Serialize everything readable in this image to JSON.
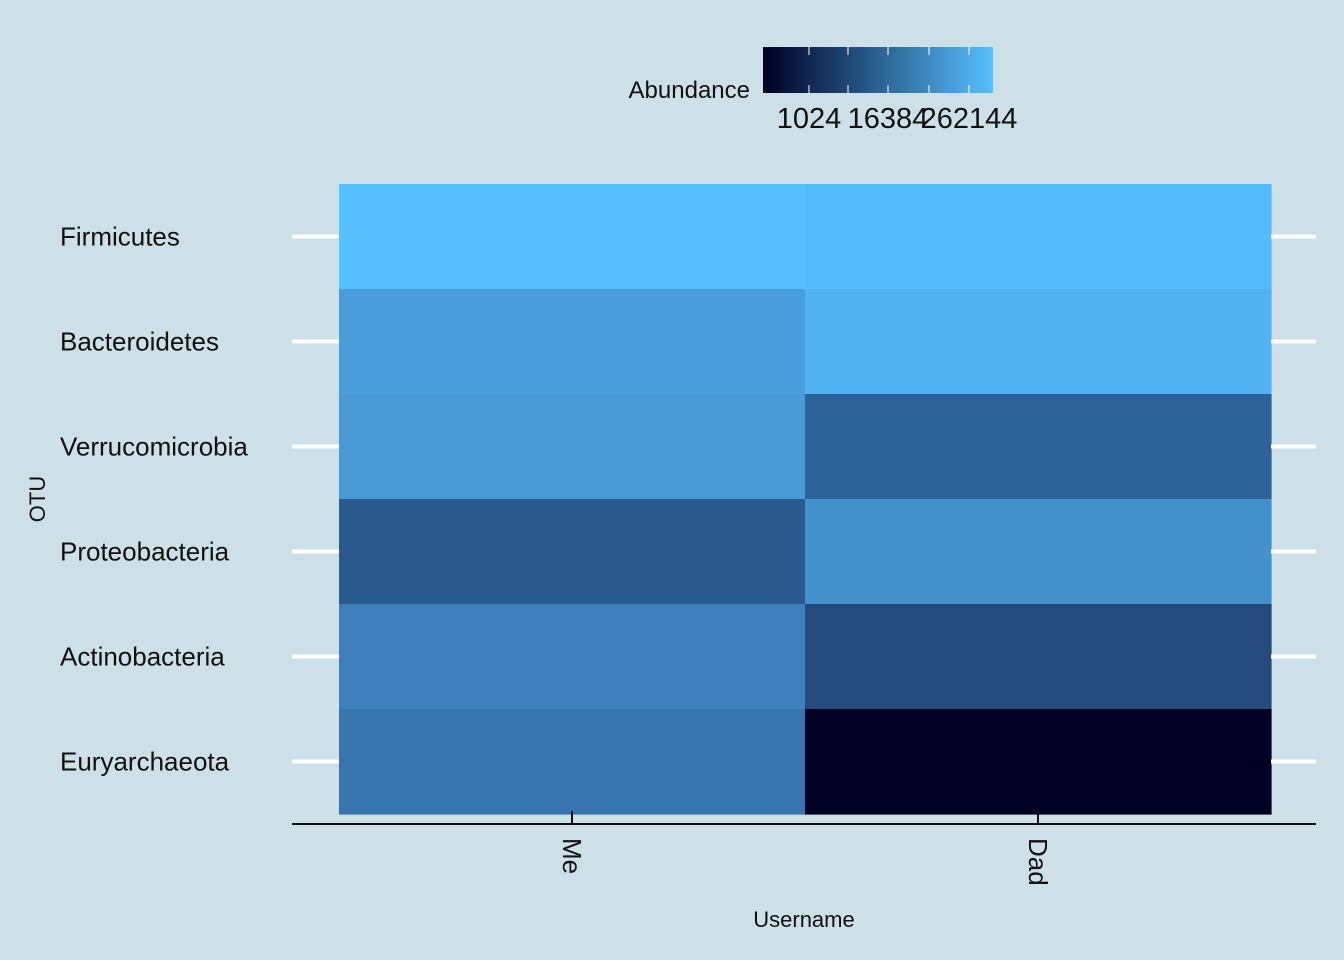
{
  "chart_data": {
    "type": "heatmap",
    "title": "",
    "xlabel": "Username",
    "ylabel": "OTU",
    "x_categories": [
      "Me",
      "Dad"
    ],
    "y_categories": [
      "Firmicutes",
      "Bacteroidetes",
      "Verrucomicrobia",
      "Proteobacteria",
      "Actinobacteria",
      "Euryarchaeota"
    ],
    "cells": [
      {
        "x": "Me",
        "y": "Firmicutes",
        "color": "#57c0fe"
      },
      {
        "x": "Dad",
        "y": "Firmicutes",
        "color": "#54bbfc"
      },
      {
        "x": "Me",
        "y": "Bacteroidetes",
        "color": "#4a9edb"
      },
      {
        "x": "Dad",
        "y": "Bacteroidetes",
        "color": "#51b3f2"
      },
      {
        "x": "Me",
        "y": "Verrucomicrobia",
        "color": "#4a9ad8"
      },
      {
        "x": "Dad",
        "y": "Verrucomicrobia",
        "color": "#2e6399"
      },
      {
        "x": "Me",
        "y": "Proteobacteria",
        "color": "#2b5a8d"
      },
      {
        "x": "Dad",
        "y": "Proteobacteria",
        "color": "#4490cb"
      },
      {
        "x": "Me",
        "y": "Actinobacteria",
        "color": "#3c7fba"
      },
      {
        "x": "Dad",
        "y": "Actinobacteria",
        "color": "#254a7c"
      },
      {
        "x": "Me",
        "y": "Euryarchaeota",
        "color": "#3874ad"
      },
      {
        "x": "Dad",
        "y": "Euryarchaeota",
        "color": "#000022"
      }
    ],
    "legend": {
      "title": "Abundance",
      "position": "top",
      "scale": "log",
      "low_color": "#000022",
      "high_color": "#57c0fe",
      "tick_labels": [
        "1024",
        "16384",
        "262144"
      ]
    },
    "grid": false
  }
}
